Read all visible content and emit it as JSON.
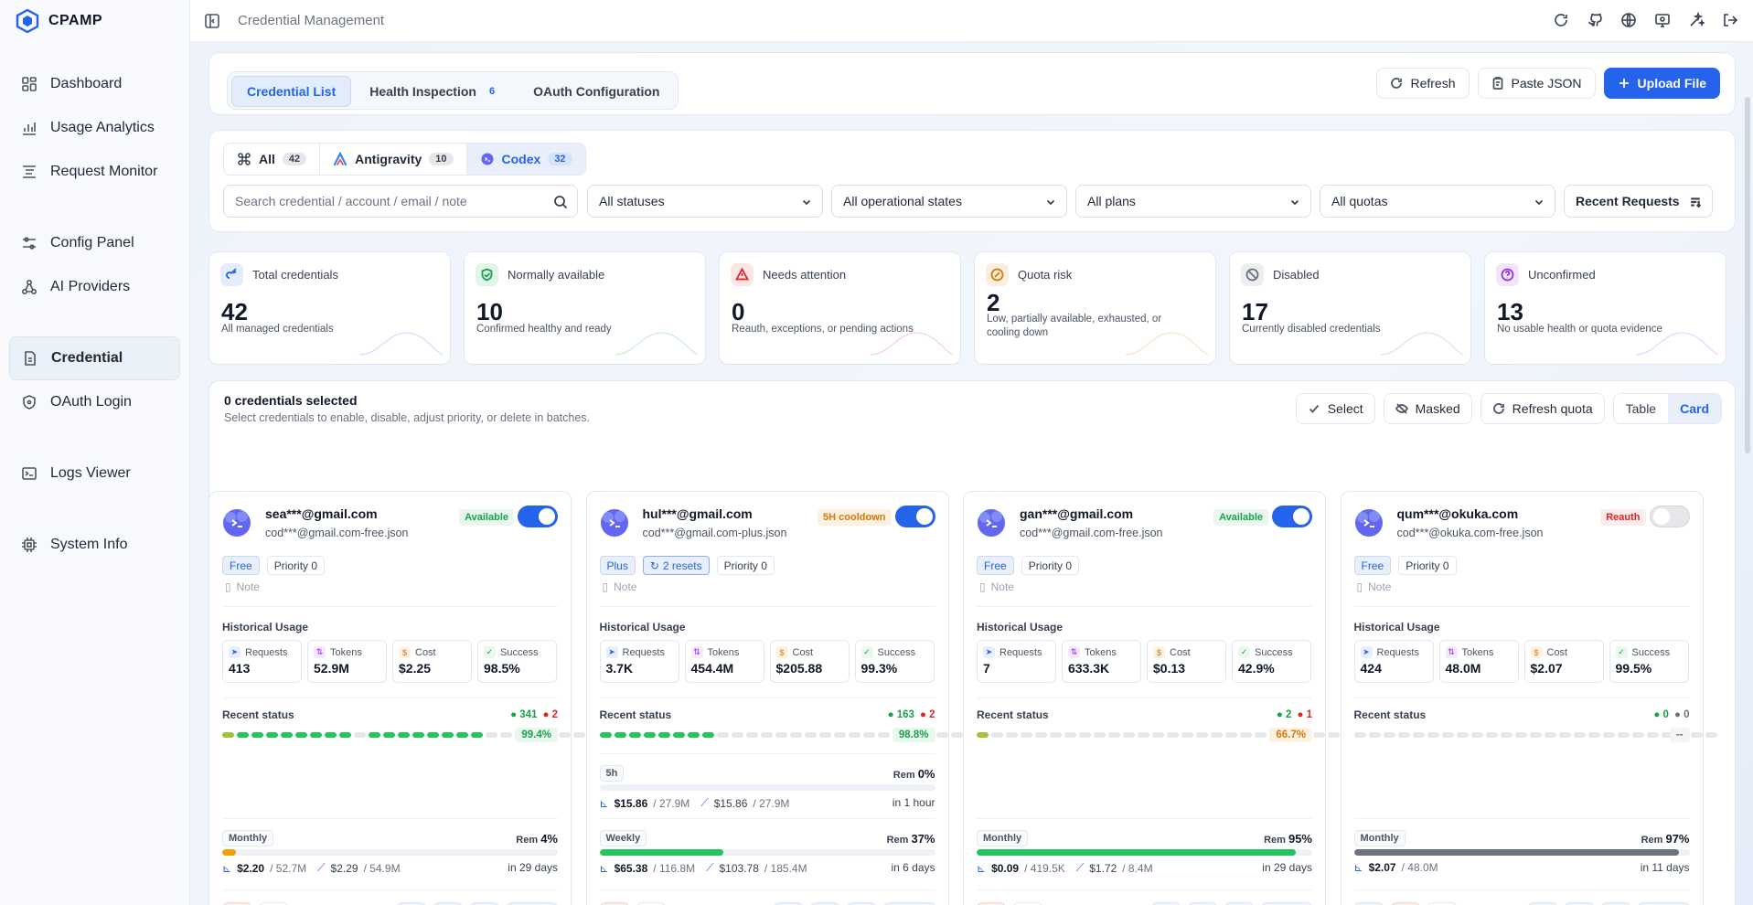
{
  "brand": {
    "name": "CPAMP"
  },
  "header": {
    "title": "Credential Management"
  },
  "sidebar": {
    "items": [
      {
        "label": "Dashboard",
        "icon": "grid-icon"
      },
      {
        "label": "Usage Analytics",
        "icon": "bar-chart-icon"
      },
      {
        "label": "Request Monitor",
        "icon": "list-icon"
      },
      {
        "label": "Config Panel",
        "icon": "sliders-icon"
      },
      {
        "label": "AI Providers",
        "icon": "nodes-icon"
      },
      {
        "label": "Credential",
        "icon": "file-icon",
        "active": true
      },
      {
        "label": "OAuth Login",
        "icon": "shield-icon"
      },
      {
        "label": "Logs Viewer",
        "icon": "terminal-icon"
      },
      {
        "label": "System Info",
        "icon": "chip-icon"
      }
    ]
  },
  "tabs": [
    {
      "label": "Credential List",
      "active": true
    },
    {
      "label": "Health Inspection",
      "count": "6"
    },
    {
      "label": "OAuth Configuration"
    }
  ],
  "toolbar": {
    "refresh": "Refresh",
    "paste": "Paste JSON",
    "upload": "Upload File"
  },
  "providers": [
    {
      "label": "All",
      "count": "42"
    },
    {
      "label": "Antigravity",
      "count": "10"
    },
    {
      "label": "Codex",
      "count": "32",
      "active": true
    }
  ],
  "filters": {
    "search_placeholder": "Search credential / account / email / note",
    "status": "All statuses",
    "operational": "All operational states",
    "plans": "All plans",
    "quotas": "All quotas",
    "sort": "Recent Requests"
  },
  "stats": [
    {
      "title": "Total credentials",
      "value": "42",
      "desc": "All managed credentials",
      "color": "#2563eb"
    },
    {
      "title": "Normally available",
      "value": "10",
      "desc": "Confirmed healthy and ready",
      "color": "#16a34a"
    },
    {
      "title": "Needs attention",
      "value": "0",
      "desc": "Reauth, exceptions, or pending actions",
      "color": "#dc2626"
    },
    {
      "title": "Quota risk",
      "value": "2",
      "desc": "Low, partially available, exhausted, or cooling down",
      "color": "#d97706"
    },
    {
      "title": "Disabled",
      "value": "17",
      "desc": "Currently disabled credentials",
      "color": "#6b7280"
    },
    {
      "title": "Unconfirmed",
      "value": "13",
      "desc": "No usable health or quota evidence",
      "color": "#9333ea"
    }
  ],
  "selection": {
    "title": "0 credentials selected",
    "subtitle": "Select credentials to enable, disable, adjust priority, or delete in batches.",
    "select": "Select",
    "masked": "Masked",
    "refresh_quota": "Refresh quota",
    "view_table": "Table",
    "view_card": "Card"
  },
  "labels": {
    "note": "Note",
    "historical": "Historical Usage",
    "recent": "Recent status",
    "requests": "Requests",
    "tokens": "Tokens",
    "cost": "Cost",
    "success": "Success",
    "rem": "Rem",
    "detail": "Detail"
  },
  "cards": [
    {
      "email": "sea***@gmail.com",
      "file": "cod***@gmail.com-free.json",
      "status": "Available",
      "status_kind": "ok",
      "enabled": true,
      "plan": "Free",
      "priority": "Priority 0",
      "resets": "",
      "requests": "413",
      "tokens": "52.9M",
      "cost": "$2.25",
      "success": "98.5%",
      "ok_count": "341",
      "err_count": "2",
      "rate": "99.4%",
      "rate_kind": "g",
      "dots": "yggggggggnggggggggnnnnnnn",
      "quotas": [
        {
          "label": "Monthly",
          "rem": "4%",
          "fill": 0.04,
          "color": "#f59e0b",
          "used": "$2.20",
          "used_tok": "52.7M",
          "total": "$2.29",
          "total_tok": "54.9M",
          "reset": "in 29 days"
        }
      ]
    },
    {
      "email": "hul***@gmail.com",
      "file": "cod***@gmail.com-plus.json",
      "status": "5H cooldown",
      "status_kind": "warn",
      "enabled": true,
      "plan": "Plus",
      "priority": "Priority 0",
      "resets": "2 resets",
      "requests": "3.7K",
      "tokens": "454.4M",
      "cost": "$205.88",
      "success": "99.3%",
      "ok_count": "163",
      "err_count": "2",
      "rate": "98.8%",
      "rate_kind": "g",
      "dots": "ggggggggnnnnnnnnnnnnnnnnn",
      "quotas": [
        {
          "label": "5h",
          "rem": "0%",
          "fill": 0.0,
          "color": "#22c55e",
          "used": "$15.86",
          "used_tok": "27.9M",
          "total": "$15.86",
          "total_tok": "27.9M",
          "reset": "in 1 hour"
        },
        {
          "label": "Weekly",
          "rem": "37%",
          "fill": 0.37,
          "color": "#22c55e",
          "used": "$65.38",
          "used_tok": "116.8M",
          "total": "$103.78",
          "total_tok": "185.4M",
          "reset": "in 6 days"
        }
      ]
    },
    {
      "email": "gan***@gmail.com",
      "file": "cod***@gmail.com-free.json",
      "status": "Available",
      "status_kind": "ok",
      "enabled": true,
      "plan": "Free",
      "priority": "Priority 0",
      "resets": "",
      "requests": "7",
      "tokens": "633.3K",
      "cost": "$0.13",
      "success": "42.9%",
      "ok_count": "2",
      "err_count": "1",
      "rate": "66.7%",
      "rate_kind": "o",
      "dots": "ynnnnnnnnnnnnnnnnnnnnnnnn",
      "quotas": [
        {
          "label": "Monthly",
          "rem": "95%",
          "fill": 0.95,
          "color": "#22c55e",
          "used": "$0.09",
          "used_tok": "419.5K",
          "total": "$1.72",
          "total_tok": "8.4M",
          "reset": "in 29 days"
        }
      ]
    },
    {
      "email": "qum***@okuka.com",
      "file": "cod***@okuka.com-free.json",
      "status": "Reauth",
      "status_kind": "err",
      "enabled": false,
      "plan": "Free",
      "priority": "Priority 0",
      "resets": "",
      "requests": "424",
      "tokens": "48.0M",
      "cost": "$2.07",
      "success": "99.5%",
      "ok_count": "0",
      "err_count": "0",
      "rate": "--",
      "rate_kind": "n",
      "dots": "nnnnnnnnnnnnnnnnnnnnnnnnn",
      "quotas": [
        {
          "label": "Monthly",
          "rem": "97%",
          "fill": 0.97,
          "color": "#6b7280",
          "used": "$2.07",
          "used_tok": "48.0M",
          "total": "",
          "total_tok": "",
          "reset": "in 11 days"
        }
      ]
    }
  ]
}
